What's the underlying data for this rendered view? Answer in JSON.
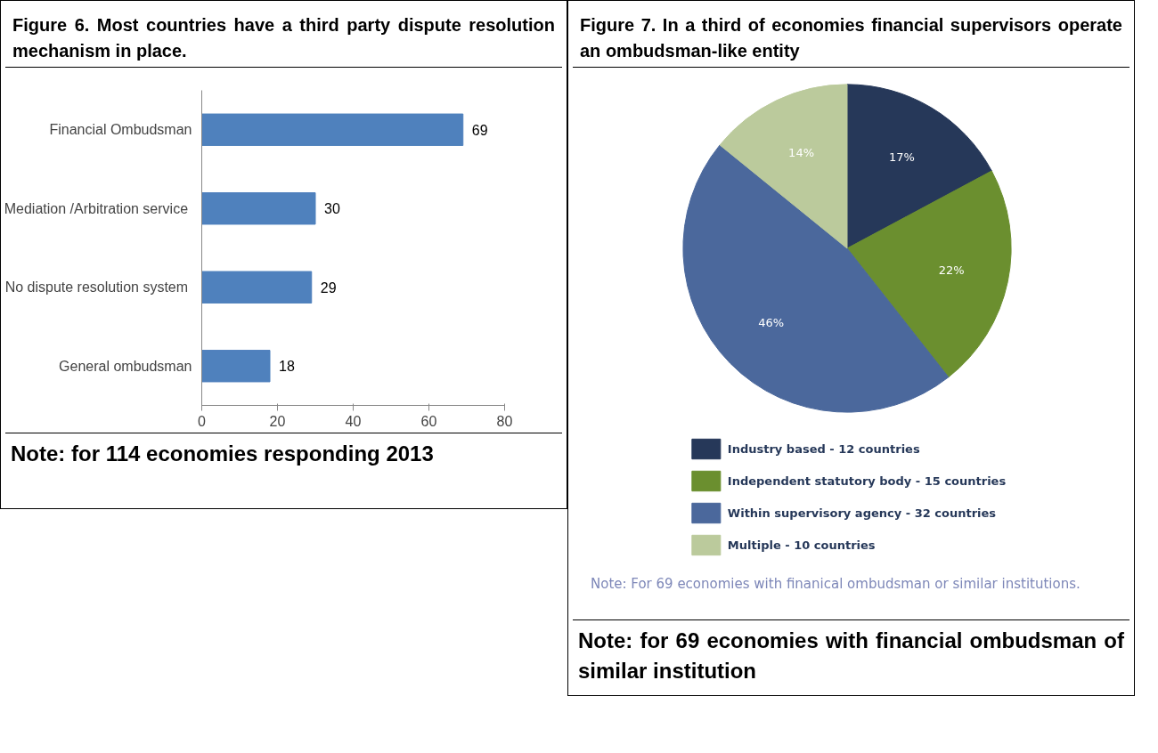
{
  "chart_data": [
    {
      "type": "bar",
      "orientation": "horizontal",
      "title": "Figure 6. Most countries have a third party dispute resolution mechanism in place.",
      "categories": [
        "Financial Ombudsman",
        "Mediation /Arbitration  service",
        "No dispute  resolution system",
        "General ombudsman"
      ],
      "values": [
        69,
        30,
        29,
        18
      ],
      "color": "#4f81bd",
      "xlim": [
        0,
        80
      ],
      "xticks": [
        0,
        20,
        40,
        60,
        80
      ],
      "data_labels": true,
      "grid": false,
      "annotations": [
        "Note: for 114 economies responding 2013"
      ]
    },
    {
      "type": "pie",
      "title": "Figure 7. In a third of economies financial supervisors operate an ombudsman-like entity",
      "categories": [
        "Industry based - 12 countries",
        "Independent statutory body - 15 countries",
        "Within supervisory agency - 32 countries",
        "Multiple - 10 countries"
      ],
      "values": [
        17,
        22,
        46,
        14
      ],
      "colors": [
        "#263859",
        "#6b8f2f",
        "#4b689c",
        "#bbca9c"
      ],
      "value_labels": [
        "17%",
        "22%",
        "46%",
        "14%"
      ],
      "legend": "bottom",
      "annotations": [
        "Note: For 69 economies with finanical ombudsman or similar institutions.",
        "Note: for 69 economies with financial ombudsman of similar institution"
      ]
    }
  ]
}
